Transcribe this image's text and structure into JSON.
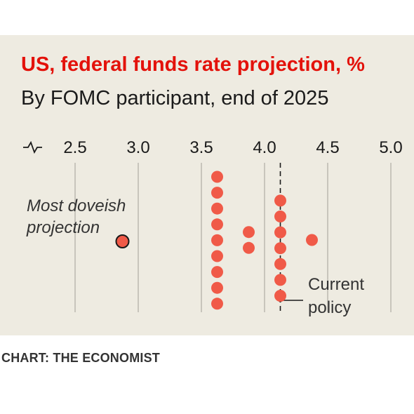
{
  "title": "US, federal funds rate projection, %",
  "subtitle": "By FOMC participant, end of 2025",
  "source": "CHART: THE ECONOMIST",
  "colors": {
    "dot": "#f05a48",
    "title": "#e3120b",
    "panel": "#eeebe1",
    "grid": "#c8c5bc"
  },
  "icons": {
    "axis_break": "axis-break-icon"
  },
  "chart_data": {
    "type": "scatter",
    "title": "US, federal funds rate projection, %",
    "subtitle": "By FOMC participant, end of 2025",
    "xlim": [
      2.5,
      5.0
    ],
    "x_ticks": [
      "2.5",
      "3.0",
      "3.5",
      "4.0",
      "4.5",
      "5.0"
    ],
    "x_tick_values": [
      2.5,
      3.0,
      3.5,
      4.0,
      4.5,
      5.0
    ],
    "points": [
      {
        "x": 3.625,
        "count": 9
      },
      {
        "x": 3.875,
        "count": 2
      },
      {
        "x": 4.125,
        "count": 7
      },
      {
        "x": 4.375,
        "count": 1
      }
    ],
    "highlight": {
      "x": 2.875,
      "label": "Most doveish projection"
    },
    "reference_line": {
      "x": 4.125,
      "label": "Current policy"
    },
    "annotations": {
      "doveish_line1": "Most doveish",
      "doveish_line2": "projection",
      "policy_line1": "Current",
      "policy_line2": "policy"
    }
  }
}
